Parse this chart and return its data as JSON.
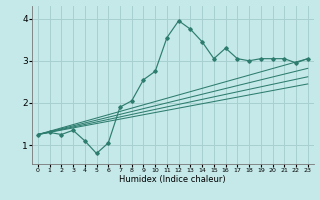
{
  "title": "",
  "xlabel": "Humidex (Indice chaleur)",
  "background_color": "#c5e8e8",
  "grid_color": "#a8d0d0",
  "line_color": "#2d7d6e",
  "x_ticks": [
    0,
    1,
    2,
    3,
    4,
    5,
    6,
    7,
    8,
    9,
    10,
    11,
    12,
    13,
    14,
    15,
    16,
    17,
    18,
    19,
    20,
    21,
    22,
    23
  ],
  "y_ticks": [
    1,
    2,
    3,
    4
  ],
  "ylim": [
    0.55,
    4.3
  ],
  "xlim": [
    -0.5,
    23.5
  ],
  "zigzag_x": [
    0,
    1,
    2,
    3,
    4,
    5,
    6,
    7,
    8,
    9,
    10,
    11,
    12,
    13,
    14,
    15,
    16,
    17,
    18,
    19,
    20,
    21,
    22,
    23
  ],
  "zigzag_y": [
    1.25,
    1.3,
    1.25,
    1.35,
    1.1,
    0.8,
    1.05,
    1.9,
    2.05,
    2.55,
    2.75,
    3.55,
    3.95,
    3.75,
    3.45,
    3.05,
    3.3,
    3.05,
    3.0,
    3.05,
    3.05,
    3.05,
    2.95,
    3.05
  ],
  "line1_x": [
    0,
    23
  ],
  "line1_y": [
    1.25,
    3.05
  ],
  "line2_x": [
    0,
    23
  ],
  "line2_y": [
    1.25,
    2.82
  ],
  "line3_x": [
    0,
    23
  ],
  "line3_y": [
    1.25,
    2.62
  ],
  "line4_x": [
    0,
    23
  ],
  "line4_y": [
    1.25,
    2.45
  ]
}
